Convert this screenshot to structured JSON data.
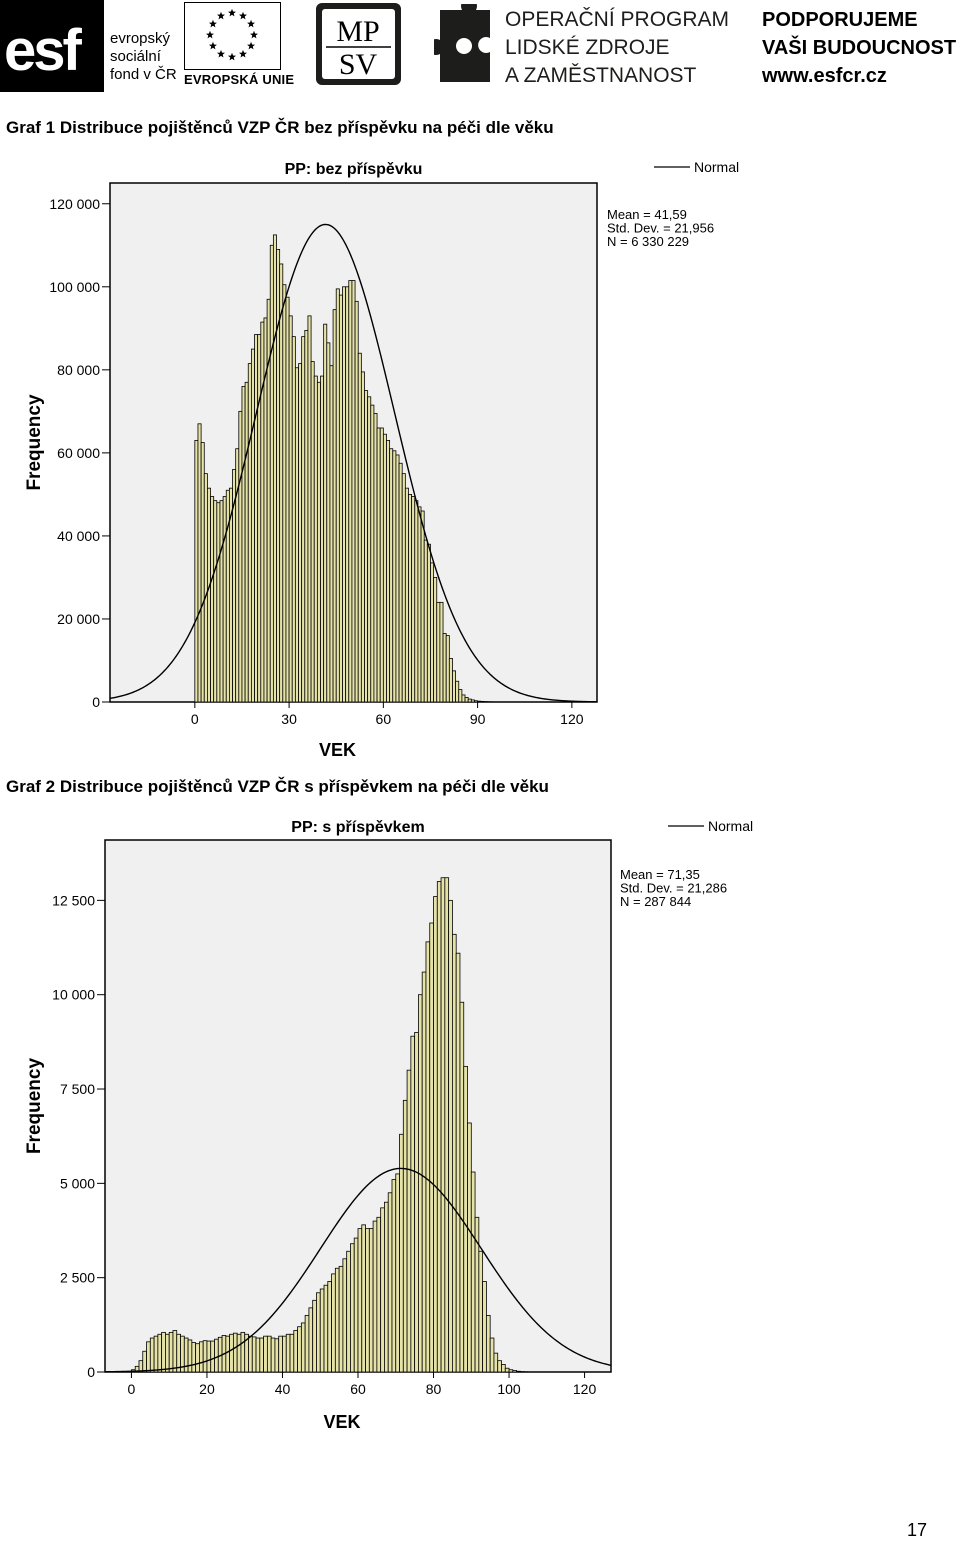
{
  "header": {
    "esf_logo_text": "esf",
    "esf_caption": [
      "evropský",
      "sociální",
      "fond v ČR"
    ],
    "eu_caption": "EVROPSKÁ UNIE",
    "mpsv_logo_text": [
      "MP",
      "SV"
    ],
    "program_lines": [
      "OPERAČNÍ PROGRAM",
      "LIDSKÉ ZDROJE",
      "A ZAMĚSTNANOST"
    ],
    "slogan_lines": [
      "PODPORUJEME",
      "VAŠI BUDOUCNOST",
      "www.esfcr.cz"
    ]
  },
  "captions": {
    "graph1": "Graf 1 Distribuce pojištěnců VZP ČR bez příspěvku na péči dle věku",
    "graph2": "Graf 2 Distribuce pojištěnců VZP ČR s příspěvkem na péči dle věku"
  },
  "page_number": "17",
  "colors": {
    "bar_fill": "#e6e3a8",
    "bar_stroke": "#000000",
    "plot_bg": "#f0f0f0"
  },
  "chart_data": [
    {
      "type": "bar",
      "title": "PP: bez příspěvku",
      "xlabel": "VEK",
      "ylabel": "Frequency",
      "legend": "Normal",
      "stats": [
        "Mean = 41,59",
        "Std. Dev. = 21,956",
        "N = 6 330 229"
      ],
      "x_ticks": [
        0,
        30,
        60,
        90,
        120
      ],
      "x_tick_labels": [
        "0",
        "30",
        "60",
        "90",
        "120"
      ],
      "y_ticks": [
        0,
        20000,
        40000,
        60000,
        80000,
        100000,
        120000
      ],
      "y_tick_labels": [
        "0",
        "20 000",
        "40 000",
        "60 000",
        "80 000",
        "100 000",
        "120 000"
      ],
      "xlim": [
        -27,
        128
      ],
      "ylim": [
        0,
        125000
      ],
      "mean": 41.59,
      "std": 21.956,
      "n": 6330229,
      "x": [
        0,
        1,
        2,
        3,
        4,
        5,
        6,
        7,
        8,
        9,
        10,
        11,
        12,
        13,
        14,
        15,
        16,
        17,
        18,
        19,
        20,
        21,
        22,
        23,
        24,
        25,
        26,
        27,
        28,
        29,
        30,
        31,
        32,
        33,
        34,
        35,
        36,
        37,
        38,
        39,
        40,
        41,
        42,
        43,
        44,
        45,
        46,
        47,
        48,
        49,
        50,
        51,
        52,
        53,
        54,
        55,
        56,
        57,
        58,
        59,
        60,
        61,
        62,
        63,
        64,
        65,
        66,
        67,
        68,
        69,
        70,
        71,
        72,
        73,
        74,
        75,
        76,
        77,
        78,
        79,
        80,
        81,
        82,
        83,
        84,
        85,
        86,
        87,
        88,
        89,
        90,
        91,
        92,
        93,
        94,
        95,
        96,
        97,
        98,
        99,
        100
      ],
      "values": [
        63000,
        67000,
        62500,
        55000,
        51500,
        49500,
        48500,
        48000,
        48500,
        49500,
        51000,
        51500,
        56000,
        61000,
        70000,
        76000,
        77000,
        81500,
        85000,
        88500,
        88500,
        91500,
        92500,
        97000,
        110000,
        112500,
        109000,
        105500,
        100500,
        97500,
        93000,
        88000,
        80500,
        81500,
        88000,
        89500,
        93000,
        82000,
        78500,
        77000,
        78500,
        91000,
        86500,
        81000,
        94500,
        99500,
        98000,
        100000,
        100000,
        101500,
        101500,
        96500,
        84000,
        79500,
        75000,
        73500,
        71500,
        69500,
        66000,
        66000,
        64500,
        63000,
        61000,
        60500,
        59500,
        57500,
        55000,
        51500,
        50000,
        49500,
        48500,
        47000,
        46000,
        39000,
        38000,
        33500,
        30000,
        24000,
        24000,
        16500,
        16000,
        10500,
        7500,
        5000,
        3000,
        1700,
        1100,
        700,
        500,
        300,
        200,
        150,
        100,
        60,
        40,
        25,
        15,
        10,
        5,
        3,
        2
      ]
    },
    {
      "type": "bar",
      "title": "PP: s příspěvkem",
      "xlabel": "VEK",
      "ylabel": "Frequency",
      "legend": "Normal",
      "stats": [
        "Mean = 71,35",
        "Std. Dev. = 21,286",
        "N = 287 844"
      ],
      "x_ticks": [
        0,
        20,
        40,
        60,
        80,
        100,
        120
      ],
      "x_tick_labels": [
        "0",
        "20",
        "40",
        "60",
        "80",
        "100",
        "120"
      ],
      "y_ticks": [
        0,
        2500,
        5000,
        7500,
        10000,
        12500
      ],
      "y_tick_labels": [
        "0",
        "2 500",
        "5 000",
        "7 500",
        "10 000",
        "12 500"
      ],
      "xlim": [
        -7,
        127
      ],
      "ylim": [
        0,
        14100
      ],
      "mean": 71.35,
      "std": 21.286,
      "n": 287844,
      "x": [
        0,
        1,
        2,
        3,
        4,
        5,
        6,
        7,
        8,
        9,
        10,
        11,
        12,
        13,
        14,
        15,
        16,
        17,
        18,
        19,
        20,
        21,
        22,
        23,
        24,
        25,
        26,
        27,
        28,
        29,
        30,
        31,
        32,
        33,
        34,
        35,
        36,
        37,
        38,
        39,
        40,
        41,
        42,
        43,
        44,
        45,
        46,
        47,
        48,
        49,
        50,
        51,
        52,
        53,
        54,
        55,
        56,
        57,
        58,
        59,
        60,
        61,
        62,
        63,
        64,
        65,
        66,
        67,
        68,
        69,
        70,
        71,
        72,
        73,
        74,
        75,
        76,
        77,
        78,
        79,
        80,
        81,
        82,
        83,
        84,
        85,
        86,
        87,
        88,
        89,
        90,
        91,
        92,
        93,
        94,
        95,
        96,
        97,
        98,
        99,
        100,
        101,
        102,
        103,
        104,
        105
      ],
      "values": [
        60,
        150,
        300,
        550,
        800,
        900,
        950,
        1000,
        1050,
        1000,
        1050,
        1100,
        1000,
        950,
        900,
        850,
        780,
        750,
        800,
        830,
        820,
        820,
        870,
        920,
        970,
        950,
        1000,
        1030,
        1000,
        1050,
        1000,
        950,
        930,
        900,
        900,
        950,
        950,
        900,
        880,
        950,
        950,
        1000,
        1000,
        1100,
        1200,
        1300,
        1500,
        1700,
        1900,
        2100,
        2200,
        2300,
        2400,
        2600,
        2750,
        2800,
        3000,
        3200,
        3400,
        3550,
        3800,
        3900,
        3800,
        3800,
        4000,
        4100,
        4350,
        4500,
        4750,
        5100,
        5250,
        6300,
        7200,
        8000,
        8900,
        9000,
        10000,
        10600,
        11400,
        11900,
        12600,
        13000,
        13100,
        13100,
        12500,
        11600,
        11100,
        9800,
        8100,
        6600,
        5300,
        4100,
        3200,
        2400,
        1500,
        900,
        500,
        300,
        200,
        100,
        60,
        40,
        20,
        10,
        5,
        2
      ]
    }
  ]
}
